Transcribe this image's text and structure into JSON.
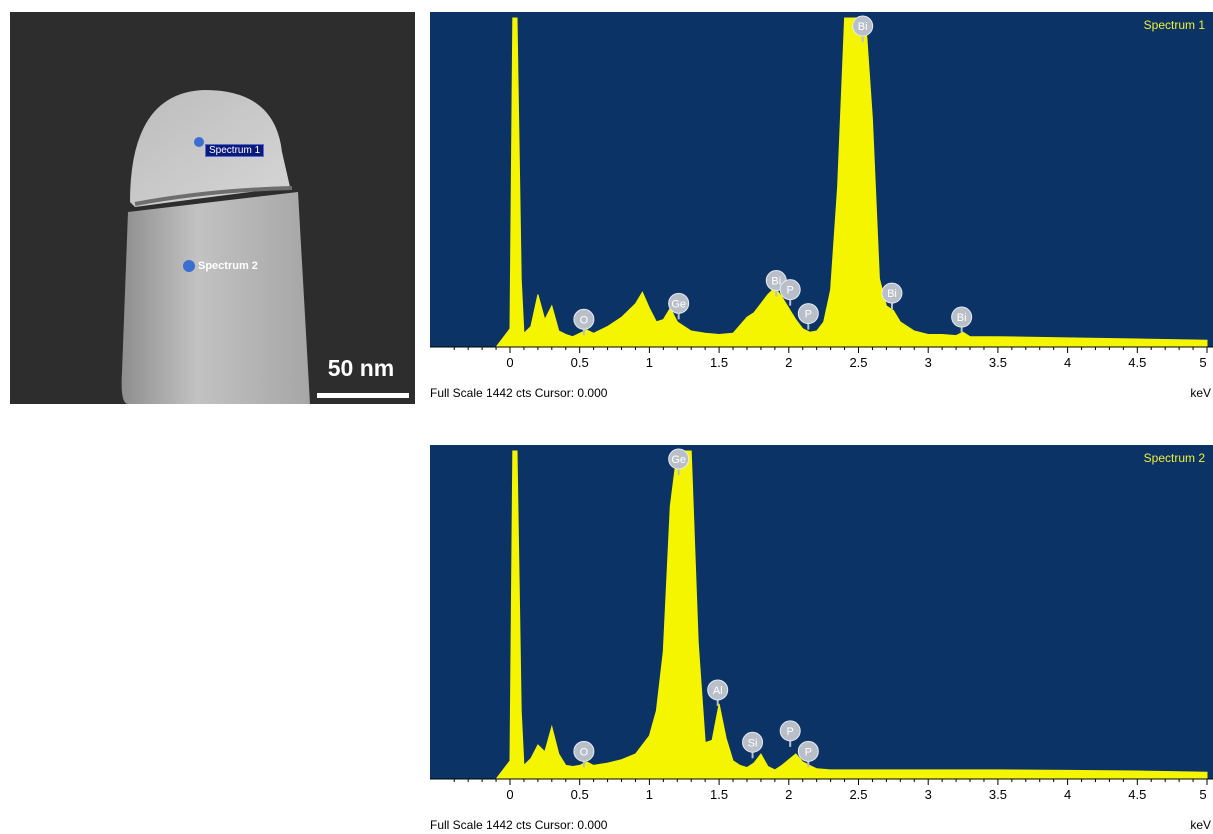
{
  "micrograph": {
    "spots": [
      {
        "label": "Spectrum 1"
      },
      {
        "label": "Spectrum 2"
      }
    ],
    "scale_bar_label": "50 nm"
  },
  "colors": {
    "plot_bg": "#0b3366",
    "spectrum_fill": "#f5f500",
    "label_text": "#f0f03a",
    "marker_fill": "#b9bfc9"
  },
  "chart_data": [
    {
      "type": "area",
      "title": "Spectrum 1",
      "xlabel": "keV",
      "footer": "Full Scale 1442 cts Cursor: 0.000",
      "xlim": [
        -0.6,
        5.0
      ],
      "ylim": [
        0,
        1442
      ],
      "x_ticks": [
        "0",
        "0.5",
        "1",
        "1.5",
        "2",
        "2.5",
        "3",
        "3.5",
        "4",
        "4.5",
        "5"
      ],
      "x": [
        -0.1,
        0.0,
        0.02,
        0.05,
        0.08,
        0.1,
        0.15,
        0.2,
        0.25,
        0.3,
        0.35,
        0.4,
        0.45,
        0.5,
        0.55,
        0.6,
        0.7,
        0.8,
        0.9,
        0.95,
        1.0,
        1.05,
        1.1,
        1.15,
        1.2,
        1.25,
        1.3,
        1.4,
        1.5,
        1.6,
        1.7,
        1.75,
        1.8,
        1.85,
        1.9,
        1.95,
        2.0,
        2.05,
        2.1,
        2.15,
        2.2,
        2.25,
        2.3,
        2.35,
        2.4,
        2.45,
        2.5,
        2.55,
        2.6,
        2.65,
        2.7,
        2.75,
        2.8,
        2.9,
        3.0,
        3.1,
        3.2,
        3.25,
        3.3,
        3.5,
        4.0,
        4.5,
        5.0
      ],
      "y": [
        0,
        80,
        1442,
        1442,
        300,
        60,
        90,
        230,
        120,
        180,
        70,
        55,
        45,
        60,
        75,
        60,
        90,
        130,
        190,
        240,
        170,
        110,
        120,
        170,
        110,
        90,
        70,
        60,
        55,
        60,
        130,
        150,
        190,
        230,
        260,
        220,
        170,
        120,
        80,
        65,
        70,
        110,
        250,
        700,
        1442,
        1442,
        1442,
        1442,
        1000,
        300,
        180,
        160,
        110,
        70,
        55,
        55,
        50,
        65,
        45,
        45,
        40,
        35,
        30
      ],
      "peak_labels": [
        {
          "label": "O",
          "x": 0.53,
          "y": 60
        },
        {
          "label": "Ge",
          "x": 1.21,
          "y": 130
        },
        {
          "label": "Bi",
          "x": 1.91,
          "y": 230
        },
        {
          "label": "P",
          "x": 2.01,
          "y": 190
        },
        {
          "label": "P",
          "x": 2.14,
          "y": 85
        },
        {
          "label": "Bi",
          "x": 2.53,
          "y": 1442
        },
        {
          "label": "Bi",
          "x": 2.74,
          "y": 175
        },
        {
          "label": "Bi",
          "x": 3.24,
          "y": 70
        }
      ]
    },
    {
      "type": "area",
      "title": "Spectrum 2",
      "xlabel": "keV",
      "footer": "Full Scale 1442 cts Cursor: 0.000",
      "xlim": [
        -0.6,
        5.0
      ],
      "ylim": [
        0,
        1442
      ],
      "x_ticks": [
        "0",
        "0.5",
        "1",
        "1.5",
        "2",
        "2.5",
        "3",
        "3.5",
        "4",
        "4.5",
        "5"
      ],
      "x": [
        -0.1,
        0.0,
        0.02,
        0.05,
        0.08,
        0.1,
        0.15,
        0.2,
        0.25,
        0.3,
        0.35,
        0.4,
        0.45,
        0.5,
        0.55,
        0.6,
        0.7,
        0.8,
        0.9,
        1.0,
        1.05,
        1.1,
        1.15,
        1.2,
        1.25,
        1.3,
        1.35,
        1.4,
        1.45,
        1.5,
        1.55,
        1.6,
        1.65,
        1.7,
        1.75,
        1.8,
        1.85,
        1.9,
        1.95,
        2.0,
        2.05,
        2.1,
        2.15,
        2.2,
        2.3,
        2.5,
        3.0,
        3.5,
        4.0,
        4.5,
        5.0
      ],
      "y": [
        0,
        80,
        1442,
        1442,
        300,
        60,
        90,
        150,
        120,
        230,
        110,
        60,
        55,
        60,
        75,
        60,
        70,
        85,
        110,
        190,
        300,
        560,
        1200,
        1442,
        1442,
        1442,
        600,
        160,
        170,
        330,
        180,
        80,
        60,
        50,
        70,
        110,
        55,
        40,
        60,
        85,
        110,
        75,
        60,
        45,
        40,
        40,
        40,
        40,
        38,
        35,
        30
      ],
      "peak_labels": [
        {
          "label": "O",
          "x": 0.53,
          "y": 60
        },
        {
          "label": "Ge",
          "x": 1.21,
          "y": 1442
        },
        {
          "label": "Al",
          "x": 1.49,
          "y": 330
        },
        {
          "label": "Si",
          "x": 1.74,
          "y": 100
        },
        {
          "label": "P",
          "x": 2.01,
          "y": 150
        },
        {
          "label": "P",
          "x": 2.14,
          "y": 60
        }
      ]
    }
  ]
}
